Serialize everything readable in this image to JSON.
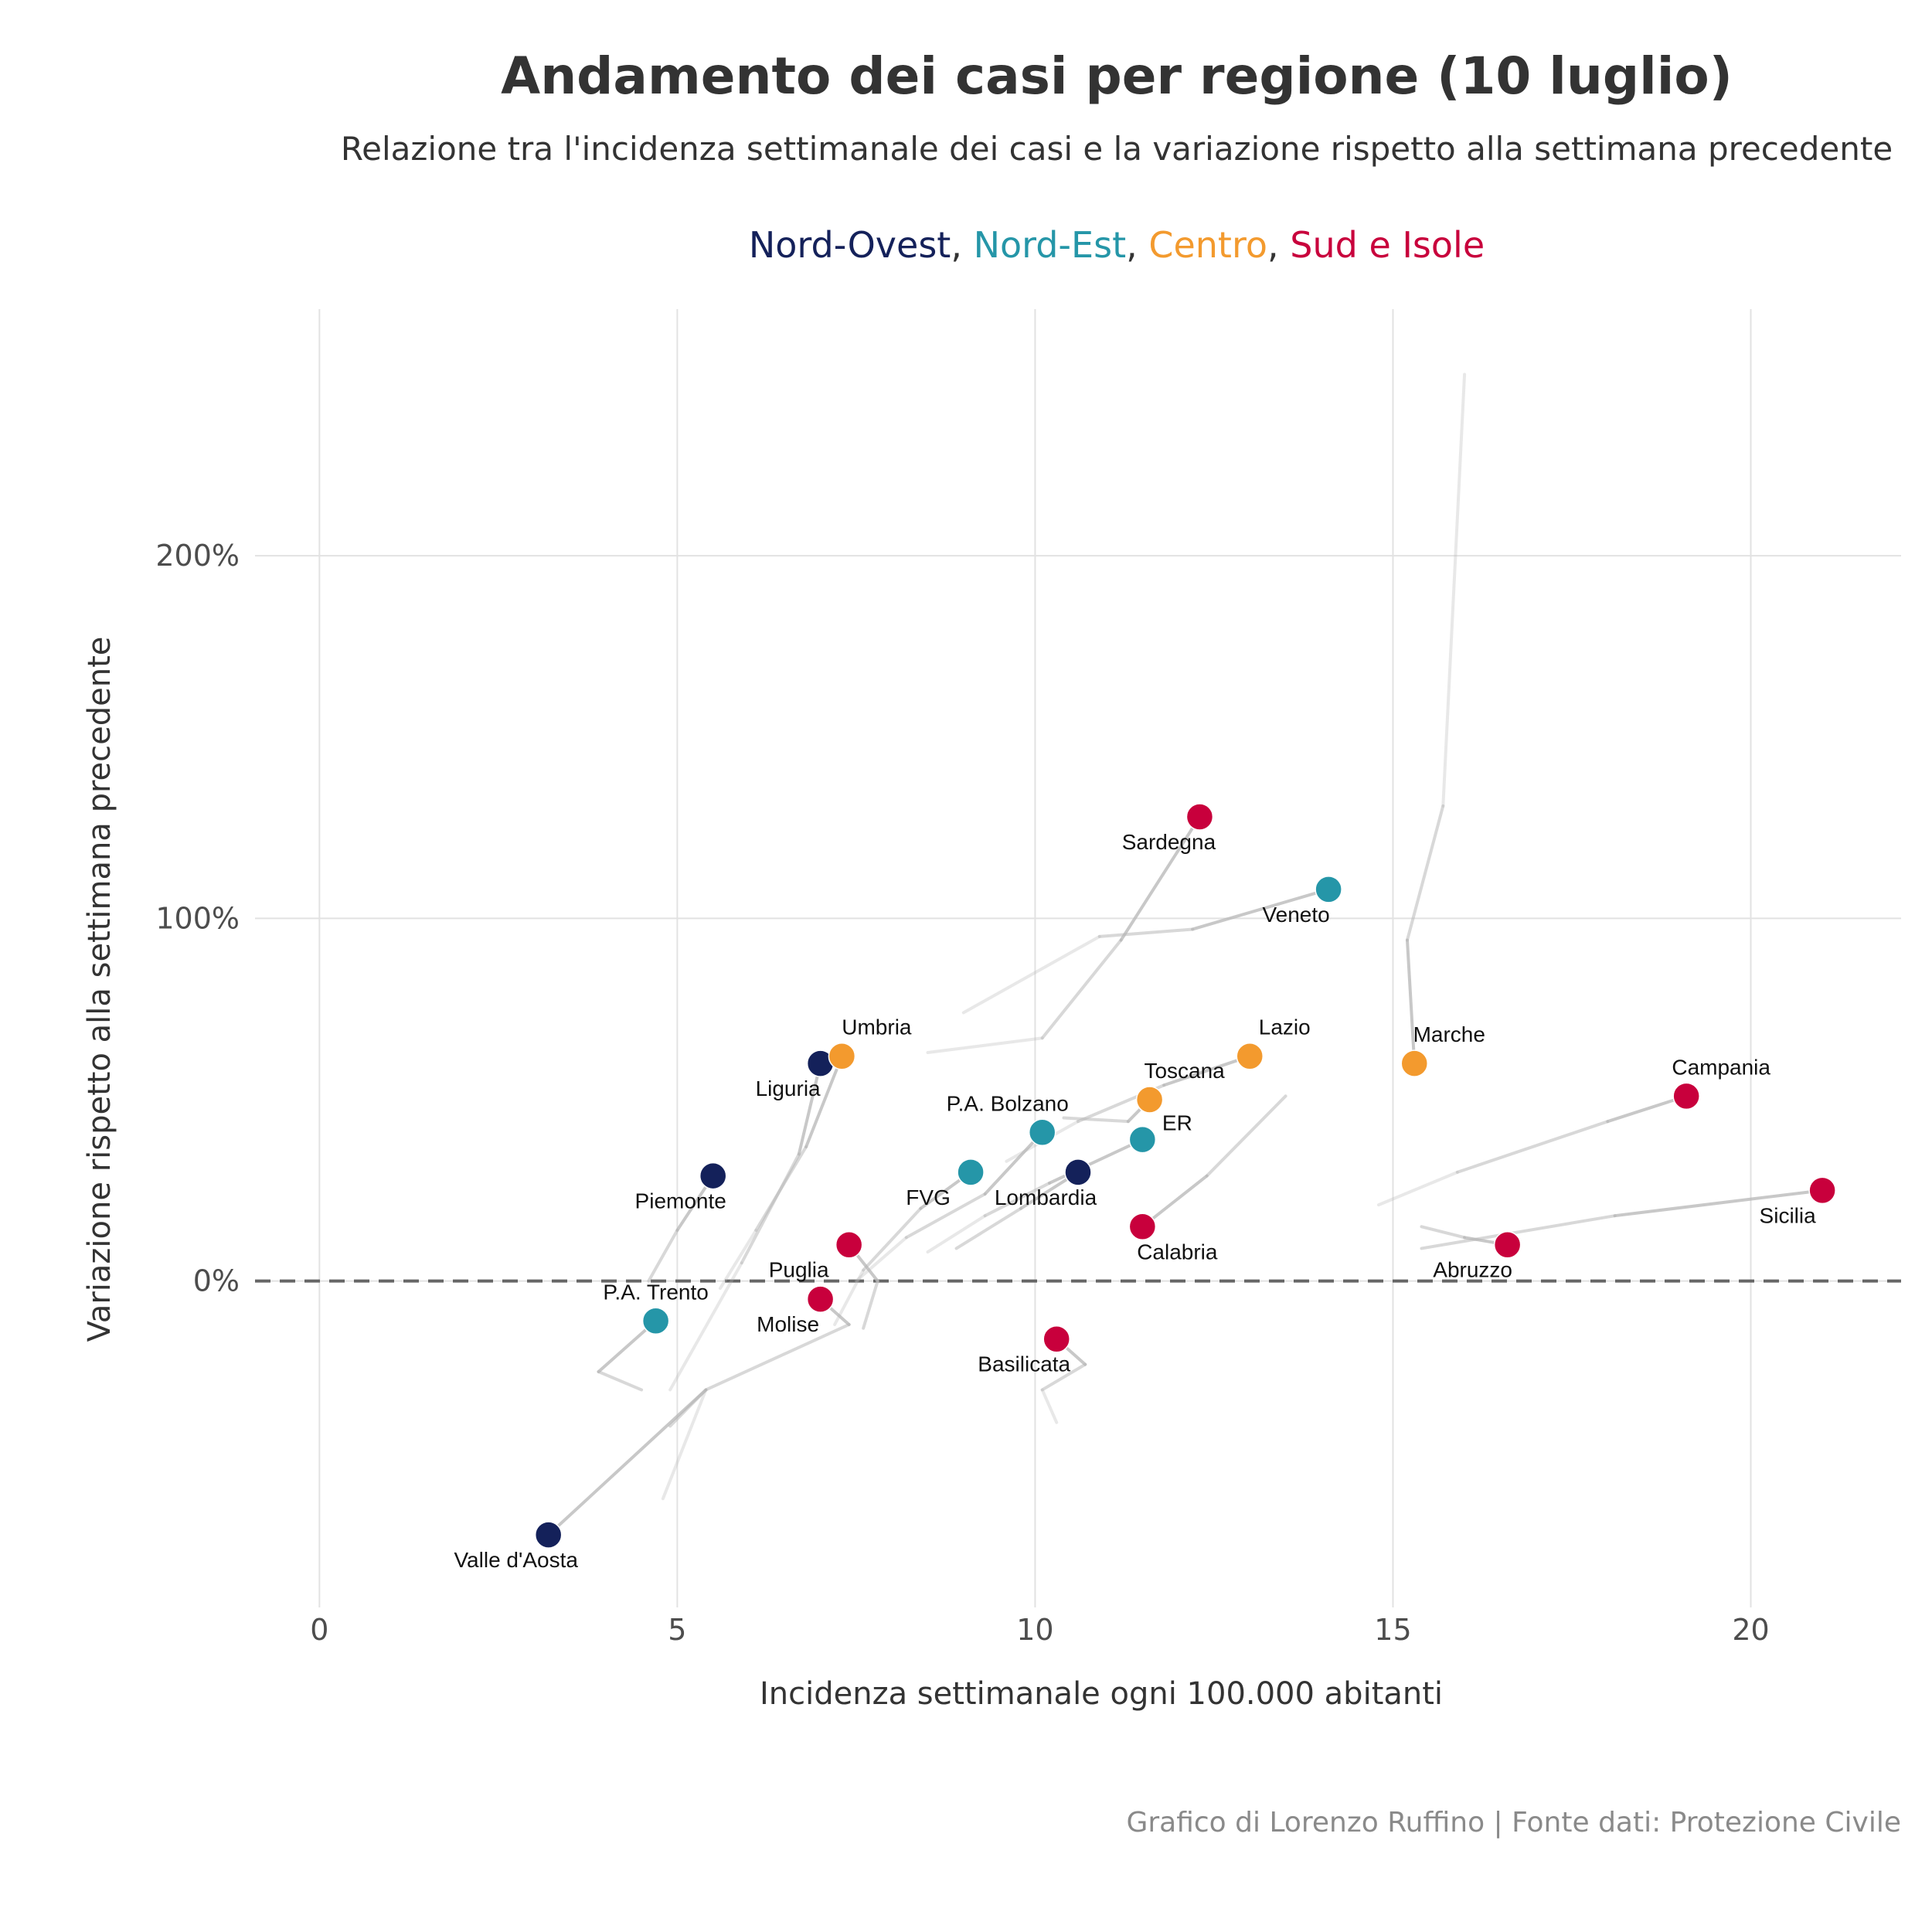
{
  "title": "Andamento dei casi per regione (10 luglio)",
  "subtitle": "Relazione tra l'incidenza settimanale dei casi e la variazione rispetto alla settimana precedente",
  "caption": "Grafico di Lorenzo Ruffino | Fonte dati: Protezione Civile",
  "legend": [
    {
      "name": "Nord-Ovest",
      "color": "#14215a"
    },
    {
      "name": "Nord-Est",
      "color": "#2596a8"
    },
    {
      "name": "Centro",
      "color": "#f39a2e"
    },
    {
      "name": "Sud e Isole",
      "color": "#c8003c"
    }
  ],
  "chart_data": {
    "type": "scatter",
    "title": "Andamento dei casi per regione (10 luglio)",
    "xlabel": "Incidenza settimanale ogni 100.000 abitanti",
    "ylabel": "Variazione rispetto alla settimana precedente",
    "xlim": [
      -0.9,
      22.1
    ],
    "ylim": [
      -90,
      268
    ],
    "x_ticks": [
      0,
      5,
      10,
      15,
      20
    ],
    "x_tick_labels": [
      "0",
      "5",
      "10",
      "15",
      "20"
    ],
    "y_ticks": [
      0,
      100,
      200
    ],
    "y_tick_labels": [
      "0%",
      "100%",
      "200%"
    ],
    "reference_line": 0,
    "grid": true,
    "series": [
      {
        "name": "Nord-Ovest",
        "color": "#14215a",
        "points": [
          {
            "label": "Liguria",
            "x": 7.0,
            "y": 60
          },
          {
            "label": "Piemonte",
            "x": 5.5,
            "y": 29
          },
          {
            "label": "Lombardia",
            "x": 10.6,
            "y": 30
          },
          {
            "label": "Valle d'Aosta",
            "x": 3.2,
            "y": -70
          }
        ]
      },
      {
        "name": "Nord-Est",
        "color": "#2596a8",
        "points": [
          {
            "label": "Veneto",
            "x": 14.1,
            "y": 108
          },
          {
            "label": "P.A. Bolzano",
            "x": 10.1,
            "y": 41
          },
          {
            "label": "ER",
            "x": 11.5,
            "y": 39
          },
          {
            "label": "FVG",
            "x": 9.1,
            "y": 30
          },
          {
            "label": "P.A. Trento",
            "x": 4.7,
            "y": -11
          }
        ]
      },
      {
        "name": "Centro",
        "color": "#f39a2e",
        "points": [
          {
            "label": "Umbria",
            "x": 7.3,
            "y": 62
          },
          {
            "label": "Lazio",
            "x": 13.0,
            "y": 62
          },
          {
            "label": "Marche",
            "x": 15.3,
            "y": 60
          },
          {
            "label": "Toscana",
            "x": 11.6,
            "y": 50
          }
        ]
      },
      {
        "name": "Sud e Isole",
        "color": "#c8003c",
        "points": [
          {
            "label": "Sardegna",
            "x": 12.3,
            "y": 128
          },
          {
            "label": "Campania",
            "x": 19.1,
            "y": 51
          },
          {
            "label": "Sicilia",
            "x": 21.0,
            "y": 25
          },
          {
            "label": "Calabria",
            "x": 11.5,
            "y": 15
          },
          {
            "label": "Abruzzo",
            "x": 16.6,
            "y": 10
          },
          {
            "label": "Puglia",
            "x": 7.4,
            "y": 10
          },
          {
            "label": "Molise",
            "x": 7.0,
            "y": -5
          },
          {
            "label": "Basilicata",
            "x": 10.3,
            "y": -16
          }
        ]
      }
    ],
    "trails": [
      {
        "region": "Sardegna",
        "points": [
          [
            12.3,
            128
          ],
          [
            11.2,
            94
          ],
          [
            10.1,
            67
          ],
          [
            8.5,
            63
          ]
        ]
      },
      {
        "region": "Veneto",
        "points": [
          [
            14.1,
            108
          ],
          [
            12.2,
            97
          ],
          [
            10.9,
            95
          ],
          [
            9.0,
            74
          ]
        ]
      },
      {
        "region": "Marche",
        "points": [
          [
            15.3,
            60
          ],
          [
            15.2,
            94
          ],
          [
            15.7,
            131
          ],
          [
            16.0,
            250
          ]
        ]
      },
      {
        "region": "Campania",
        "points": [
          [
            19.1,
            51
          ],
          [
            18.0,
            44
          ],
          [
            15.9,
            30
          ],
          [
            14.8,
            21
          ]
        ]
      },
      {
        "region": "Sicilia",
        "points": [
          [
            21.0,
            25
          ],
          [
            18.1,
            18
          ],
          [
            15.4,
            9
          ]
        ]
      },
      {
        "region": "Abruzzo",
        "points": [
          [
            16.6,
            10
          ],
          [
            16.0,
            12
          ],
          [
            15.4,
            15
          ]
        ]
      },
      {
        "region": "Lazio",
        "points": [
          [
            13.0,
            62
          ],
          [
            11.8,
            54
          ],
          [
            10.6,
            44
          ],
          [
            9.6,
            33
          ]
        ]
      },
      {
        "region": "Toscana",
        "points": [
          [
            11.6,
            50
          ],
          [
            11.3,
            44
          ],
          [
            10.4,
            45
          ]
        ]
      },
      {
        "region": "ER",
        "points": [
          [
            11.5,
            39
          ],
          [
            10.2,
            27
          ],
          [
            9.3,
            18
          ],
          [
            8.5,
            8
          ]
        ]
      },
      {
        "region": "Calabria",
        "points": [
          [
            11.5,
            15
          ],
          [
            12.4,
            29
          ],
          [
            13.5,
            51
          ]
        ]
      },
      {
        "region": "Lombardia",
        "points": [
          [
            10.6,
            30
          ],
          [
            9.8,
            20
          ],
          [
            8.9,
            9
          ]
        ]
      },
      {
        "region": "P.A. Bolzano",
        "points": [
          [
            10.1,
            41
          ],
          [
            9.3,
            24
          ],
          [
            8.2,
            12
          ],
          [
            7.5,
            0
          ]
        ]
      },
      {
        "region": "FVG",
        "points": [
          [
            9.1,
            30
          ],
          [
            8.4,
            20
          ],
          [
            7.6,
            3
          ],
          [
            7.2,
            -12
          ]
        ]
      },
      {
        "region": "Basilicata",
        "points": [
          [
            10.3,
            -16
          ],
          [
            10.7,
            -23
          ],
          [
            10.1,
            -30
          ],
          [
            10.3,
            -39
          ]
        ]
      },
      {
        "region": "Umbria",
        "points": [
          [
            7.3,
            62
          ],
          [
            6.8,
            37
          ],
          [
            6.1,
            14
          ],
          [
            5.6,
            -2
          ]
        ]
      },
      {
        "region": "Liguria",
        "points": [
          [
            7.0,
            60
          ],
          [
            6.7,
            35
          ],
          [
            5.9,
            5
          ],
          [
            4.9,
            -30
          ]
        ]
      },
      {
        "region": "Piemonte",
        "points": [
          [
            5.5,
            29
          ],
          [
            5.0,
            14
          ],
          [
            4.6,
            0
          ]
        ]
      },
      {
        "region": "Puglia",
        "points": [
          [
            7.4,
            10
          ],
          [
            7.8,
            0
          ],
          [
            7.6,
            -13
          ]
        ]
      },
      {
        "region": "Molise",
        "points": [
          [
            7.0,
            -5
          ],
          [
            7.4,
            -12
          ],
          [
            5.4,
            -30
          ],
          [
            4.8,
            -60
          ]
        ]
      },
      {
        "region": "P.A. Trento",
        "points": [
          [
            4.7,
            -11
          ],
          [
            3.9,
            -25
          ],
          [
            4.5,
            -30
          ]
        ]
      },
      {
        "region": "Valle d'Aosta",
        "points": [
          [
            3.2,
            -70
          ],
          [
            5.4,
            -30
          ],
          [
            4.9,
            -40
          ]
        ]
      }
    ]
  }
}
